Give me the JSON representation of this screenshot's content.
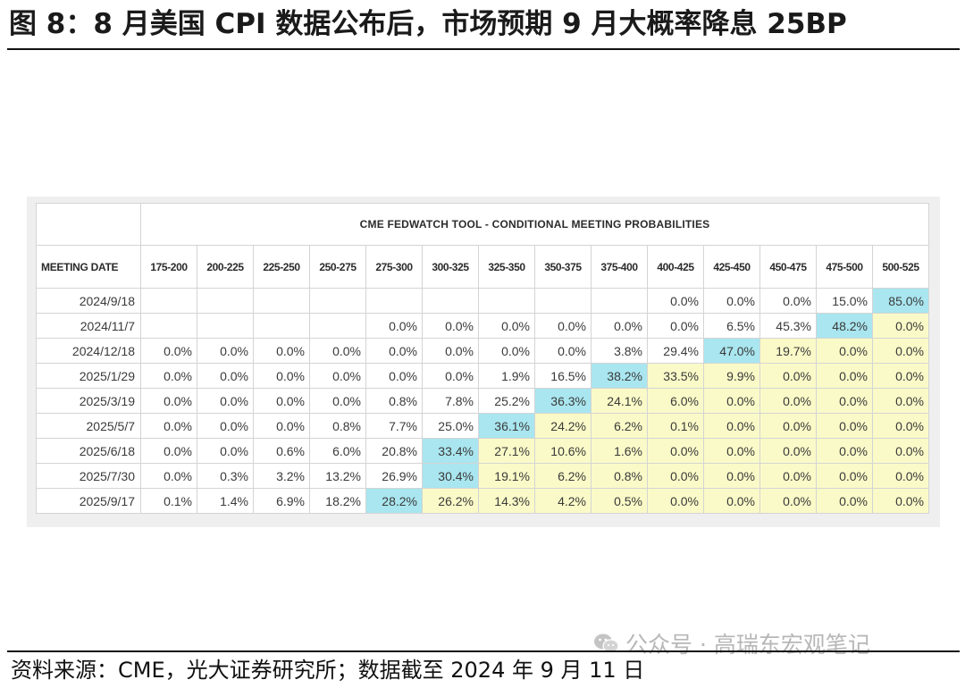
{
  "figure": {
    "title": "图 8：8 月美国 CPI 数据公布后，市场预期 9 月大概率降息 25BP",
    "source": "资料来源：CME，光大证券研究所；数据截至 2024 年 9 月 11 日",
    "watermark": "公众号 · 高瑞东宏观笔记",
    "watermark_icon": "wechat-icon"
  },
  "table": {
    "tool_title": "CME FEDWATCH TOOL - CONDITIONAL MEETING PROBABILITIES",
    "meeting_date_header": "MEETING DATE",
    "ranges": [
      "175-200",
      "200-225",
      "225-250",
      "250-275",
      "275-300",
      "300-325",
      "325-350",
      "350-375",
      "375-400",
      "400-425",
      "425-450",
      "450-475",
      "475-500",
      "500-525"
    ],
    "highlight_colors": {
      "pale_yellow": "#fafac8",
      "cyan": "#a9e6ef"
    },
    "rows": [
      {
        "date": "2024/9/18",
        "cells": [
          {
            "v": ""
          },
          {
            "v": ""
          },
          {
            "v": ""
          },
          {
            "v": ""
          },
          {
            "v": ""
          },
          {
            "v": ""
          },
          {
            "v": ""
          },
          {
            "v": ""
          },
          {
            "v": ""
          },
          {
            "v": "0.0%"
          },
          {
            "v": "0.0%"
          },
          {
            "v": "0.0%"
          },
          {
            "v": "15.0%"
          },
          {
            "v": "85.0%",
            "h": "c"
          }
        ]
      },
      {
        "date": "2024/11/7",
        "cells": [
          {
            "v": ""
          },
          {
            "v": ""
          },
          {
            "v": ""
          },
          {
            "v": ""
          },
          {
            "v": "0.0%"
          },
          {
            "v": "0.0%"
          },
          {
            "v": "0.0%"
          },
          {
            "v": "0.0%"
          },
          {
            "v": "0.0%"
          },
          {
            "v": "0.0%"
          },
          {
            "v": "6.5%"
          },
          {
            "v": "45.3%"
          },
          {
            "v": "48.2%",
            "h": "c"
          },
          {
            "v": "0.0%",
            "h": "y"
          }
        ]
      },
      {
        "date": "2024/12/18",
        "cells": [
          {
            "v": "0.0%"
          },
          {
            "v": "0.0%"
          },
          {
            "v": "0.0%"
          },
          {
            "v": "0.0%"
          },
          {
            "v": "0.0%"
          },
          {
            "v": "0.0%"
          },
          {
            "v": "0.0%"
          },
          {
            "v": "0.0%"
          },
          {
            "v": "3.8%"
          },
          {
            "v": "29.4%"
          },
          {
            "v": "47.0%",
            "h": "c"
          },
          {
            "v": "19.7%",
            "h": "y"
          },
          {
            "v": "0.0%",
            "h": "y"
          },
          {
            "v": "0.0%",
            "h": "y"
          }
        ]
      },
      {
        "date": "2025/1/29",
        "cells": [
          {
            "v": "0.0%"
          },
          {
            "v": "0.0%"
          },
          {
            "v": "0.0%"
          },
          {
            "v": "0.0%"
          },
          {
            "v": "0.0%"
          },
          {
            "v": "0.0%"
          },
          {
            "v": "1.9%"
          },
          {
            "v": "16.5%"
          },
          {
            "v": "38.2%",
            "h": "c"
          },
          {
            "v": "33.5%",
            "h": "y"
          },
          {
            "v": "9.9%",
            "h": "y"
          },
          {
            "v": "0.0%",
            "h": "y"
          },
          {
            "v": "0.0%",
            "h": "y"
          },
          {
            "v": "0.0%",
            "h": "y"
          }
        ]
      },
      {
        "date": "2025/3/19",
        "cells": [
          {
            "v": "0.0%"
          },
          {
            "v": "0.0%"
          },
          {
            "v": "0.0%"
          },
          {
            "v": "0.0%"
          },
          {
            "v": "0.8%"
          },
          {
            "v": "7.8%"
          },
          {
            "v": "25.2%"
          },
          {
            "v": "36.3%",
            "h": "c"
          },
          {
            "v": "24.1%",
            "h": "y"
          },
          {
            "v": "6.0%",
            "h": "y"
          },
          {
            "v": "0.0%",
            "h": "y"
          },
          {
            "v": "0.0%",
            "h": "y"
          },
          {
            "v": "0.0%",
            "h": "y"
          },
          {
            "v": "0.0%",
            "h": "y"
          }
        ]
      },
      {
        "date": "2025/5/7",
        "cells": [
          {
            "v": "0.0%"
          },
          {
            "v": "0.0%"
          },
          {
            "v": "0.0%"
          },
          {
            "v": "0.8%"
          },
          {
            "v": "7.7%"
          },
          {
            "v": "25.0%"
          },
          {
            "v": "36.1%",
            "h": "c"
          },
          {
            "v": "24.2%",
            "h": "y"
          },
          {
            "v": "6.2%",
            "h": "y"
          },
          {
            "v": "0.1%",
            "h": "y"
          },
          {
            "v": "0.0%",
            "h": "y"
          },
          {
            "v": "0.0%",
            "h": "y"
          },
          {
            "v": "0.0%",
            "h": "y"
          },
          {
            "v": "0.0%",
            "h": "y"
          }
        ]
      },
      {
        "date": "2025/6/18",
        "cells": [
          {
            "v": "0.0%"
          },
          {
            "v": "0.0%"
          },
          {
            "v": "0.6%"
          },
          {
            "v": "6.0%"
          },
          {
            "v": "20.8%"
          },
          {
            "v": "33.4%",
            "h": "c"
          },
          {
            "v": "27.1%",
            "h": "y"
          },
          {
            "v": "10.6%",
            "h": "y"
          },
          {
            "v": "1.6%",
            "h": "y"
          },
          {
            "v": "0.0%",
            "h": "y"
          },
          {
            "v": "0.0%",
            "h": "y"
          },
          {
            "v": "0.0%",
            "h": "y"
          },
          {
            "v": "0.0%",
            "h": "y"
          },
          {
            "v": "0.0%",
            "h": "y"
          }
        ]
      },
      {
        "date": "2025/7/30",
        "cells": [
          {
            "v": "0.0%"
          },
          {
            "v": "0.3%"
          },
          {
            "v": "3.2%"
          },
          {
            "v": "13.2%"
          },
          {
            "v": "26.9%"
          },
          {
            "v": "30.4%",
            "h": "c"
          },
          {
            "v": "19.1%",
            "h": "y"
          },
          {
            "v": "6.2%",
            "h": "y"
          },
          {
            "v": "0.8%",
            "h": "y"
          },
          {
            "v": "0.0%",
            "h": "y"
          },
          {
            "v": "0.0%",
            "h": "y"
          },
          {
            "v": "0.0%",
            "h": "y"
          },
          {
            "v": "0.0%",
            "h": "y"
          },
          {
            "v": "0.0%",
            "h": "y"
          }
        ]
      },
      {
        "date": "2025/9/17",
        "cells": [
          {
            "v": "0.1%"
          },
          {
            "v": "1.4%"
          },
          {
            "v": "6.9%"
          },
          {
            "v": "18.2%"
          },
          {
            "v": "28.2%",
            "h": "c"
          },
          {
            "v": "26.2%",
            "h": "y"
          },
          {
            "v": "14.3%",
            "h": "y"
          },
          {
            "v": "4.2%",
            "h": "y"
          },
          {
            "v": "0.5%",
            "h": "y"
          },
          {
            "v": "0.0%",
            "h": "y"
          },
          {
            "v": "0.0%",
            "h": "y"
          },
          {
            "v": "0.0%",
            "h": "y"
          },
          {
            "v": "0.0%",
            "h": "y"
          },
          {
            "v": "0.0%",
            "h": "y"
          }
        ]
      }
    ]
  }
}
